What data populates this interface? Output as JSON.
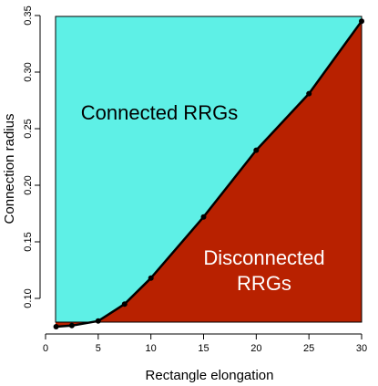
{
  "chart_data": {
    "type": "area",
    "x": [
      1,
      2.5,
      5,
      7.5,
      10,
      15,
      20,
      25,
      30
    ],
    "y": [
      0.075,
      0.076,
      0.08,
      0.095,
      0.118,
      0.172,
      0.231,
      0.281,
      0.345
    ],
    "xlabel": "Rectangle elongation",
    "ylabel": "Connection radius",
    "xlim": [
      0,
      30
    ],
    "ylim": [
      0.075,
      0.345
    ],
    "x_ticks": [
      0,
      5,
      10,
      15,
      20,
      25,
      30
    ],
    "y_ticks": [
      0.1,
      0.15,
      0.2,
      0.25,
      0.3,
      0.35
    ],
    "grid": false,
    "regions": [
      {
        "position": "above-curve",
        "label_lines": [
          "Connected RRGs"
        ],
        "color": "#5ef0e6",
        "label_color": "#000000"
      },
      {
        "position": "below-curve",
        "label_lines": [
          "Disconnected",
          "RRGs"
        ],
        "color": "#b82100",
        "label_color": "#ffffff"
      }
    ],
    "line_color": "#000000",
    "marker_color": "#000000"
  }
}
